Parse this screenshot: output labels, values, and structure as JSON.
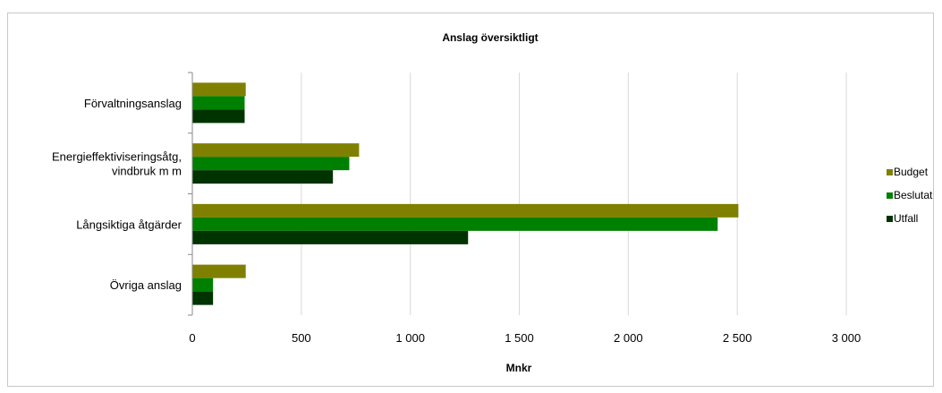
{
  "chart_data": {
    "type": "bar",
    "orientation": "horizontal",
    "title": "Anslag översiktligt",
    "xlabel": "Mnkr",
    "ylabel": "",
    "xlim": [
      0,
      3000
    ],
    "x_ticks": [
      0,
      500,
      1000,
      1500,
      2000,
      2500,
      3000
    ],
    "x_tick_labels": [
      "0",
      "500",
      "1 000",
      "1 500",
      "2 000",
      "2 500",
      "3 000"
    ],
    "grid": "vertical",
    "legend_position": "right",
    "categories": [
      [
        "Förvaltningsanslag"
      ],
      [
        "Energieffektiviseringsåtg,",
        "vindbruk m m"
      ],
      [
        "Långsiktiga åtgärder"
      ],
      [
        "Övriga anslag"
      ]
    ],
    "series": [
      {
        "name": "Budget",
        "color": "#808000",
        "values": [
          245,
          765,
          2505,
          245
        ]
      },
      {
        "name": "Beslutat",
        "color": "#008000",
        "values": [
          240,
          720,
          2410,
          95
        ]
      },
      {
        "name": "Utfall",
        "color": "#003300",
        "values": [
          240,
          645,
          1265,
          95
        ]
      }
    ]
  }
}
